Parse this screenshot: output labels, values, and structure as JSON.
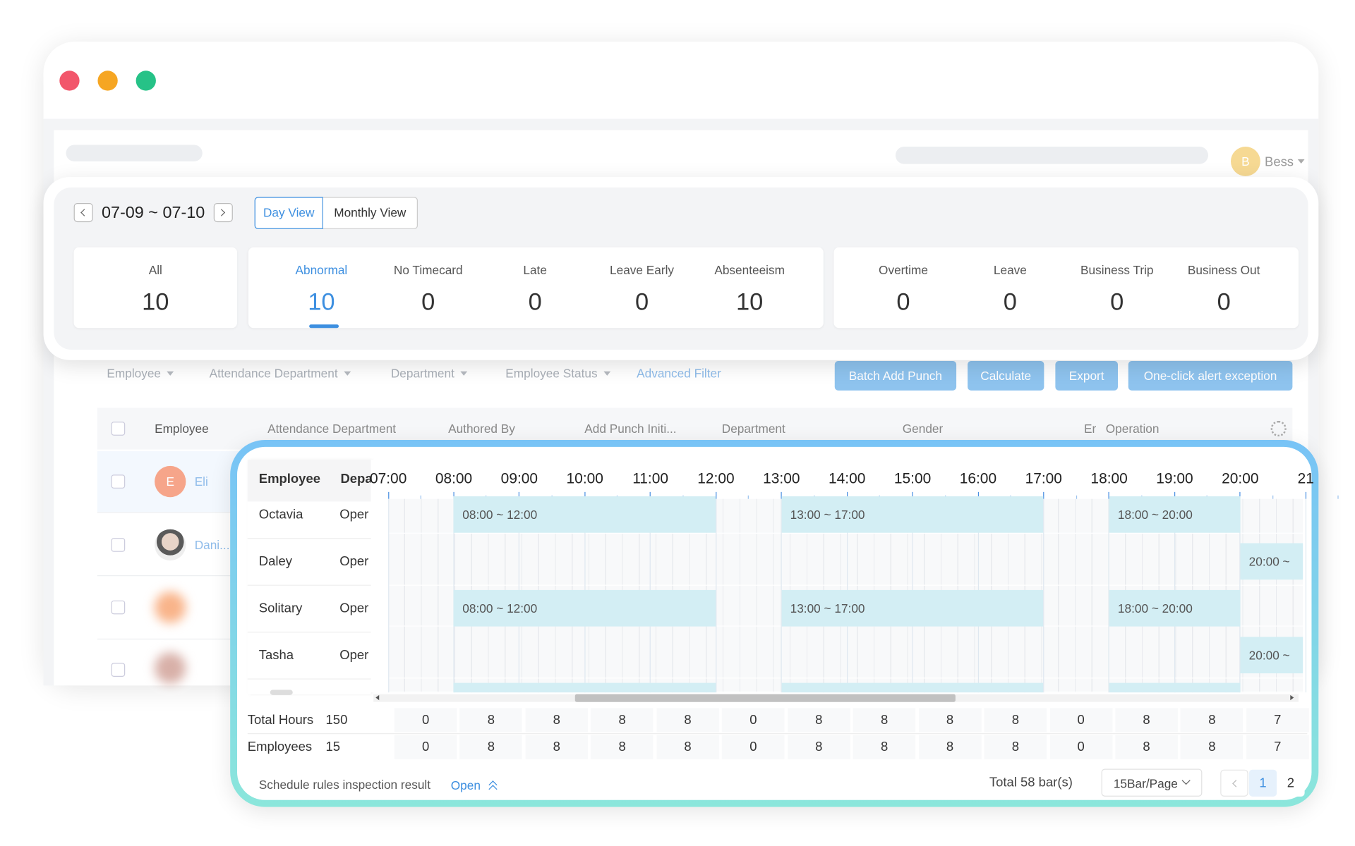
{
  "window": {
    "user": {
      "initial": "B",
      "name": "Bess"
    }
  },
  "summary": {
    "date_range": "07-09 ~ 07-10",
    "views": [
      "Day View",
      "Monthly View"
    ],
    "stats": [
      {
        "label": "All",
        "value": 10
      },
      {
        "label": "Abnormal",
        "value": 10
      },
      {
        "label": "No Timecard",
        "value": 0
      },
      {
        "label": "Late",
        "value": 0
      },
      {
        "label": "Leave Early",
        "value": 0
      },
      {
        "label": "Absenteeism",
        "value": 10
      },
      {
        "label": "Overtime",
        "value": 0
      },
      {
        "label": "Leave",
        "value": 0
      },
      {
        "label": "Business Trip",
        "value": 0
      },
      {
        "label": "Business Out",
        "value": 0
      }
    ]
  },
  "filters": [
    "Employee",
    "Attendance Department",
    "Department",
    "Employee Status"
  ],
  "advanced_filter": "Advanced Filter",
  "actions": [
    "Batch Add Punch",
    "Calculate",
    "Export",
    "One-click alert exception"
  ],
  "table": {
    "columns": [
      "Employee",
      "Attendance Department",
      "Authored By",
      "Add Punch Initi...",
      "Department",
      "Gender",
      "Er",
      "Operation"
    ],
    "rows": [
      {
        "initial": "E",
        "name": "Eli"
      },
      {
        "name": "Dani..."
      }
    ]
  },
  "schedule": {
    "columns": [
      "Employee",
      "Depa"
    ],
    "hours": [
      "07:00",
      "08:00",
      "09:00",
      "10:00",
      "11:00",
      "12:00",
      "13:00",
      "14:00",
      "15:00",
      "16:00",
      "17:00",
      "18:00",
      "19:00",
      "20:00",
      "21"
    ],
    "rows": [
      {
        "name": "Octavia",
        "department": "Oper",
        "shifts": [
          "08:00 ~ 12:00",
          "13:00 ~ 17:00",
          "18:00 ~ 20:00"
        ]
      },
      {
        "name": "Daley",
        "department": "Oper",
        "shifts": [
          "20:00 ~"
        ]
      },
      {
        "name": "Solitary",
        "department": "Oper",
        "shifts": [
          "08:00 ~ 12:00",
          "13:00 ~ 17:00",
          "18:00 ~ 20:00"
        ]
      },
      {
        "name": "Tasha",
        "department": "Oper",
        "shifts": [
          "20:00 ~"
        ]
      }
    ],
    "totals": [
      {
        "label": "Total Hours",
        "total": 150,
        "values": [
          0,
          8,
          8,
          8,
          8,
          0,
          8,
          8,
          8,
          8,
          0,
          8,
          8,
          7
        ]
      },
      {
        "label": "Employees",
        "total": 15,
        "values": [
          0,
          8,
          8,
          8,
          8,
          0,
          8,
          8,
          8,
          8,
          0,
          8,
          8,
          7
        ]
      }
    ]
  },
  "footer": {
    "rule_result": "Schedule rules inspection result",
    "open": "Open",
    "total": "Total 58 bar(s)",
    "page_size": "15Bar/Page",
    "pages": [
      1,
      2
    ]
  }
}
